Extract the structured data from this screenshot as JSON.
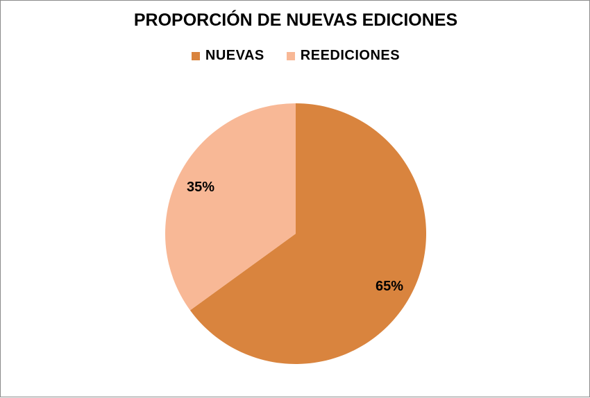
{
  "chart_data": {
    "type": "pie",
    "title": "PROPORCIÓN DE NUEVAS EDICIONES",
    "legend_position": "top",
    "categories": [
      "NUEVAS",
      "REEDICIONES"
    ],
    "values": [
      65,
      35
    ],
    "data_labels": [
      "65%",
      "35%"
    ],
    "colors": [
      "#d9843e",
      "#f8b896"
    ]
  }
}
